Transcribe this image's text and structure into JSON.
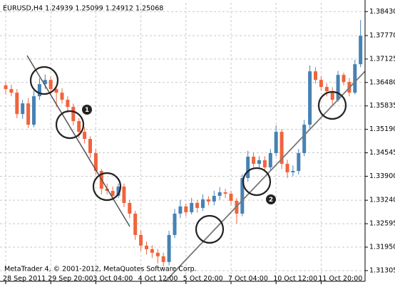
{
  "chart_data": {
    "type": "candlestick",
    "title": "EURUSD,H4  1.24939 1.25099 1.24912 1.25068",
    "footer": "MetaTrader 4, © 2001-2012, MetaQuotes Software Corp.",
    "annotations": [
      "1",
      "2"
    ],
    "up_color": "#4682b4",
    "down_color": "#f0643c",
    "grid": true,
    "categories": [
      "28 Sep 2011",
      null,
      null,
      null,
      null,
      null,
      null,
      null,
      "29 Sep 20:00",
      null,
      null,
      null,
      null,
      null,
      null,
      null,
      "3 Oct 04:00",
      null,
      null,
      null,
      null,
      null,
      null,
      null,
      "4 Oct 12:00",
      null,
      null,
      null,
      null,
      null,
      null,
      null,
      "5 Oct 20:00",
      null,
      null,
      null,
      null,
      null,
      null,
      null,
      "7 Oct 04:00",
      null,
      null,
      null,
      null,
      null,
      null,
      null,
      "10 Oct 12:00",
      null,
      null,
      null,
      null,
      null,
      null,
      null,
      "11 Oct 20:00",
      null,
      null,
      null,
      null,
      null,
      null,
      null
    ],
    "open": [
      1.364,
      1.36297,
      1.36199,
      1.35612,
      1.35905,
      1.35318,
      1.36101,
      1.36434,
      1.36551,
      1.36297,
      1.36199,
      1.36003,
      1.35808,
      1.35416,
      1.35123,
      1.34927,
      1.34536,
      1.34046,
      1.33557,
      1.33498,
      1.33361,
      1.33616,
      1.33166,
      1.32872,
      1.32285,
      1.31991,
      1.31894,
      1.31796,
      1.31698,
      1.31541,
      1.32285,
      1.32872,
      1.33068,
      1.32911,
      1.33166,
      1.33029,
      1.33264,
      1.33205,
      1.33361,
      1.33459,
      1.3342,
      1.33224,
      1.32872,
      1.33851,
      1.34438,
      1.34242,
      1.3434,
      1.34144,
      1.34536,
      1.35123,
      1.34242,
      1.34007,
      1.34046,
      1.34536,
      1.35318,
      1.36786,
      1.36551,
      1.36356,
      1.36238,
      1.36003,
      1.36688,
      1.36493,
      1.36199,
      1.36982
    ],
    "high": [
      1.3648,
      1.3642,
      1.363,
      1.36,
      1.3605,
      1.3625,
      1.366,
      1.367,
      1.3664,
      1.364,
      1.3632,
      1.361,
      1.359,
      1.355,
      1.3525,
      1.35,
      1.3465,
      1.341,
      1.337,
      1.3362,
      1.337,
      1.337,
      1.3325,
      1.3295,
      1.324,
      1.321,
      1.32,
      1.319,
      1.318,
      1.324,
      1.33,
      1.3325,
      1.3315,
      1.333,
      1.3325,
      1.334,
      1.3335,
      1.335,
      1.336,
      1.3355,
      1.335,
      1.333,
      1.3395,
      1.346,
      1.3455,
      1.3445,
      1.3445,
      1.3465,
      1.353,
      1.352,
      1.3435,
      1.342,
      1.3465,
      1.3545,
      1.3695,
      1.369,
      1.3665,
      1.3645,
      1.3635,
      1.368,
      1.3675,
      1.366,
      1.371,
      1.382
    ],
    "low": [
      1.3615,
      1.361,
      1.355,
      1.3548,
      1.3523,
      1.3525,
      1.36,
      1.363,
      1.3615,
      1.358,
      1.359,
      1.3565,
      1.353,
      1.3495,
      1.348,
      1.344,
      1.3395,
      1.334,
      1.334,
      1.3325,
      1.333,
      1.3305,
      1.3275,
      1.3215,
      1.3185,
      1.3175,
      1.3165,
      1.315,
      1.3142,
      1.3145,
      1.322,
      1.3275,
      1.328,
      1.3285,
      1.329,
      1.3295,
      1.331,
      1.331,
      1.3325,
      1.333,
      1.331,
      1.326,
      1.328,
      1.3375,
      1.3415,
      1.341,
      1.3405,
      1.3405,
      1.3445,
      1.341,
      1.3385,
      1.339,
      1.3395,
      1.3445,
      1.352,
      1.3645,
      1.3625,
      1.361,
      1.3585,
      1.3595,
      1.364,
      1.361,
      1.3615,
      1.369
    ],
    "close": [
      1.36297,
      1.36199,
      1.35612,
      1.35905,
      1.35318,
      1.36101,
      1.36434,
      1.36551,
      1.36297,
      1.36199,
      1.36003,
      1.35808,
      1.35416,
      1.35123,
      1.34927,
      1.34536,
      1.34046,
      1.33557,
      1.33498,
      1.33361,
      1.33616,
      1.33166,
      1.32872,
      1.32285,
      1.31991,
      1.31894,
      1.31796,
      1.31698,
      1.31541,
      1.32285,
      1.32872,
      1.33068,
      1.32911,
      1.33166,
      1.33029,
      1.33264,
      1.33205,
      1.33361,
      1.33459,
      1.3342,
      1.33224,
      1.32872,
      1.33851,
      1.34438,
      1.34242,
      1.3434,
      1.34144,
      1.34536,
      1.35123,
      1.34242,
      1.34007,
      1.34046,
      1.34536,
      1.35318,
      1.36786,
      1.36551,
      1.36356,
      1.36238,
      1.36003,
      1.36688,
      1.36493,
      1.36199,
      1.36982,
      1.37765
    ],
    "ylim": [
      1.3101,
      1.3867
    ],
    "yticks": [
      {
        "value": 1.3843,
        "label": "1.38430"
      },
      {
        "value": 1.3777,
        "label": "1.37770"
      },
      {
        "value": 1.37125,
        "label": "1.37125"
      },
      {
        "value": 1.3648,
        "label": "1.36480"
      },
      {
        "value": 1.35835,
        "label": "1.35835"
      },
      {
        "value": 1.3519,
        "label": "1.35190"
      },
      {
        "value": 1.34545,
        "label": "1.34545"
      },
      {
        "value": 1.339,
        "label": "1.33900"
      },
      {
        "value": 1.3324,
        "label": "1.33240"
      },
      {
        "value": 1.32595,
        "label": "1.32595"
      },
      {
        "value": 1.3195,
        "label": "1.31950"
      },
      {
        "value": 1.31305,
        "label": "1.31305"
      }
    ]
  }
}
